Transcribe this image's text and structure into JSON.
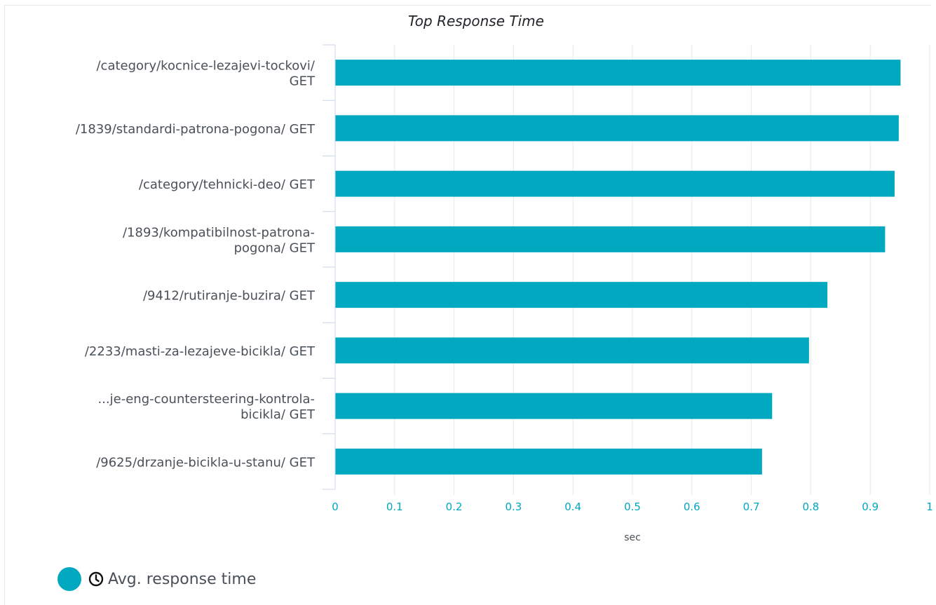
{
  "chart_data": {
    "type": "bar",
    "orientation": "horizontal",
    "title": "Top Response Time",
    "xlabel": "sec",
    "ylabel": "",
    "xlim": [
      0,
      1
    ],
    "x_ticks": [
      "0",
      "0.1",
      "0.2",
      "0.3",
      "0.4",
      "0.5",
      "0.6",
      "0.7",
      "0.8",
      "0.9",
      "1"
    ],
    "grid": true,
    "legend_position": "bottom-left",
    "categories": [
      [
        "/category/kocnice-lezajevi-tockovi/",
        "GET"
      ],
      [
        "/1839/standardi-patrona-pogona/ GET"
      ],
      [
        "/category/tehnicki-deo/ GET"
      ],
      [
        "/1893/kompatibilnost-patrona-",
        "pogona/ GET"
      ],
      [
        "/9412/rutiranje-buzira/ GET"
      ],
      [
        "/2233/masti-za-lezajeve-bicikla/ GET"
      ],
      [
        "...je-eng-countersteering-kontrola-",
        "bicikla/ GET"
      ],
      [
        "/9625/drzanje-bicikla-u-stanu/ GET"
      ]
    ],
    "series": [
      {
        "name": "Avg. response time",
        "icon": "clock-icon",
        "color": "#00a8c0",
        "values": [
          0.951,
          0.948,
          0.941,
          0.925,
          0.828,
          0.797,
          0.735,
          0.718
        ]
      }
    ]
  }
}
